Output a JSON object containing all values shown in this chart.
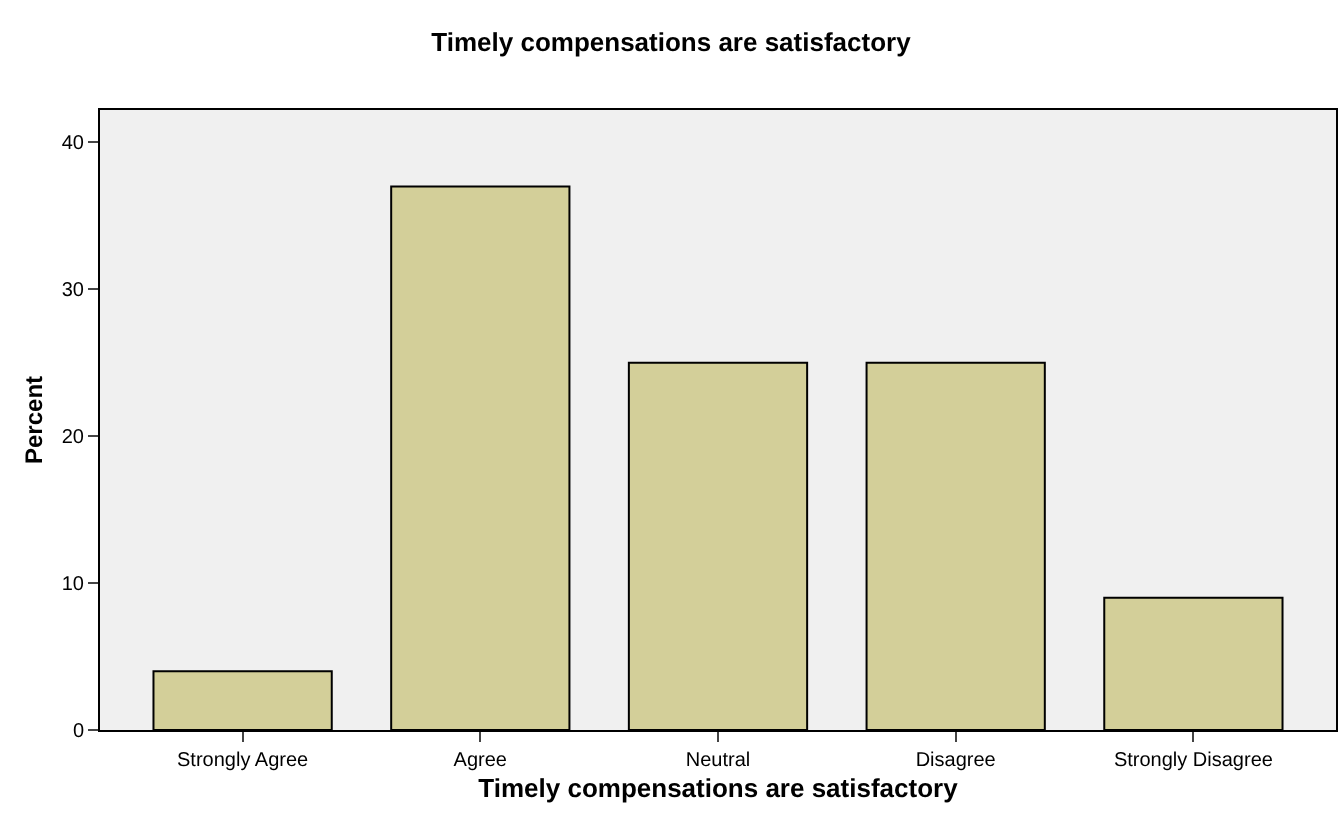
{
  "chart_data": {
    "type": "bar",
    "title": "Timely compensations are satisfactory",
    "xlabel": "Timely compensations are satisfactory",
    "ylabel": "Percent",
    "categories": [
      "Strongly Agree",
      "Agree",
      "Neutral",
      "Disagree",
      "Strongly Disagree"
    ],
    "values": [
      4,
      37,
      25,
      25,
      9
    ],
    "color": "#d3cf99",
    "ylim": [
      0,
      42.2
    ],
    "yticks": [
      0,
      10,
      20,
      30,
      40
    ],
    "grid": false
  }
}
